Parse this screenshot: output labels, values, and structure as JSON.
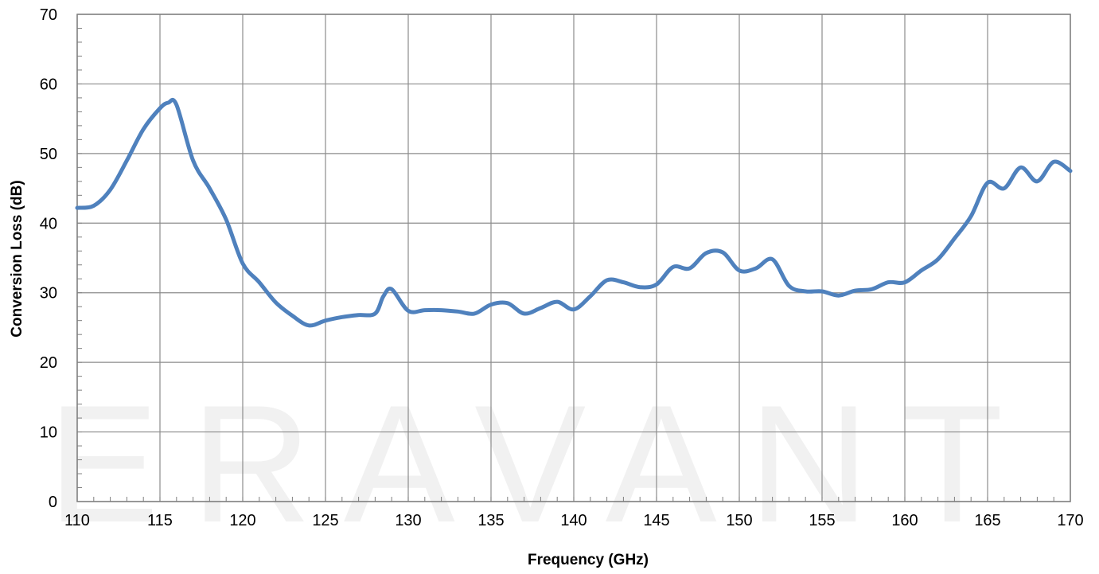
{
  "watermark": "ERAVANT",
  "chart_data": {
    "type": "line",
    "title": "",
    "xlabel": "Frequency (GHz)",
    "ylabel": "Conversion Loss (dB)",
    "xlim": [
      110,
      170
    ],
    "ylim": [
      0,
      70
    ],
    "xticks": [
      110,
      115,
      120,
      125,
      130,
      135,
      140,
      145,
      150,
      155,
      160,
      165,
      170
    ],
    "yticks": [
      0,
      10,
      20,
      30,
      40,
      50,
      60,
      70
    ],
    "grid": true,
    "legend": "none",
    "series_color": "#4F81BD",
    "series": [
      {
        "x": [
          110,
          111,
          112,
          113,
          114,
          115,
          115.5,
          116,
          117,
          118,
          119,
          120,
          121,
          122,
          123,
          124,
          125,
          126,
          127,
          128,
          128.5,
          129,
          130,
          131,
          132,
          133,
          134,
          135,
          136,
          137,
          138,
          139,
          140,
          141,
          142,
          143,
          144,
          145,
          146,
          147,
          148,
          149,
          150,
          151,
          152,
          153,
          154,
          155,
          156,
          157,
          158,
          159,
          160,
          161,
          162,
          163,
          164,
          165,
          166,
          167,
          168,
          169,
          170
        ],
        "y": [
          42.2,
          42.5,
          44.8,
          49,
          53.5,
          56.5,
          57.3,
          57,
          49,
          45,
          40.5,
          34.2,
          31.5,
          28.6,
          26.7,
          25.3,
          26,
          26.5,
          26.8,
          27,
          29.5,
          30.5,
          27.4,
          27.5,
          27.5,
          27.3,
          27,
          28.3,
          28.5,
          27,
          27.8,
          28.7,
          27.6,
          29.5,
          31.8,
          31.5,
          30.8,
          31.2,
          33.7,
          33.5,
          35.7,
          35.8,
          33.2,
          33.5,
          34.8,
          31,
          30.2,
          30.2,
          29.6,
          30.3,
          30.5,
          31.5,
          31.5,
          33.2,
          34.8,
          37.8,
          41,
          45.8,
          45,
          48,
          46,
          48.8,
          47.5
        ]
      }
    ]
  }
}
